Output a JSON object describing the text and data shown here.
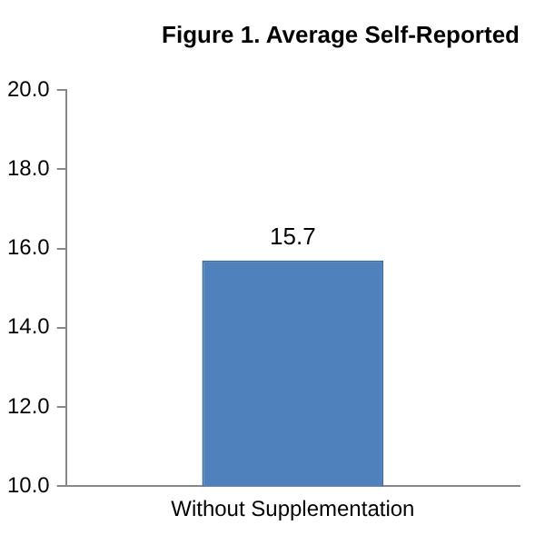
{
  "chart_data": {
    "type": "bar",
    "title": "Figure 1. Average Self-Reported",
    "categories": [
      "Without Supplementation"
    ],
    "values": [
      15.7
    ],
    "color": "#4f81bd",
    "ylim": [
      10,
      20
    ],
    "yticks": [
      {
        "value": 10,
        "label": "10.0"
      },
      {
        "value": 12,
        "label": "12.0"
      },
      {
        "value": 14,
        "label": "14.0"
      },
      {
        "value": 16,
        "label": "16.0"
      },
      {
        "value": 18,
        "label": "18.0"
      },
      {
        "value": 20,
        "label": "20.0"
      }
    ],
    "grid": false,
    "data_labels": true
  }
}
